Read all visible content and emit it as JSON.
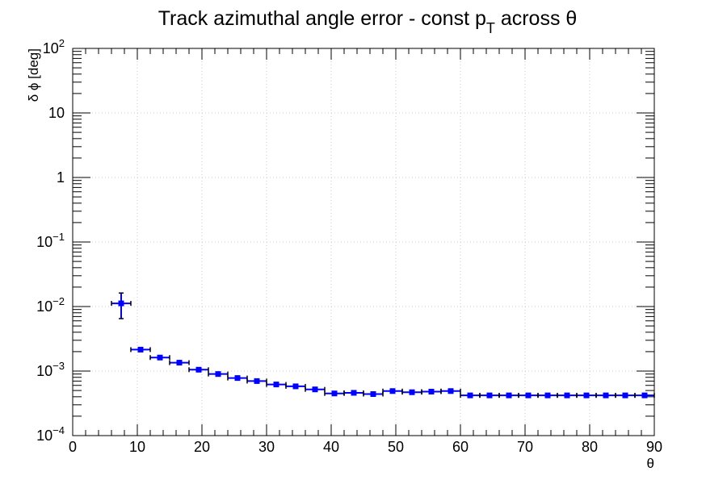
{
  "chart_data": {
    "type": "scatter",
    "title_main": "Track azimuthal angle error - const p",
    "title_sub": "T",
    "title_tail": " across θ",
    "xlabel": "θ",
    "ylabel": "δ ϕ [deg]",
    "xlim": [
      0,
      90
    ],
    "ylim": [
      0.0001,
      100
    ],
    "yscale": "log",
    "grid": true,
    "x_ticks": [
      "0",
      "10",
      "20",
      "30",
      "40",
      "50",
      "60",
      "70",
      "80",
      "90"
    ],
    "y_tick_labels": [
      {
        "base": "10",
        "exp": "−4"
      },
      {
        "base": "10",
        "exp": "−3"
      },
      {
        "base": "10",
        "exp": "−2"
      },
      {
        "base": "10",
        "exp": "−1"
      },
      {
        "base": "1",
        "exp": ""
      },
      {
        "base": "10",
        "exp": ""
      },
      {
        "base": "10",
        "exp": "2"
      }
    ],
    "marker_color": "#0000ff",
    "series": [
      {
        "x": [
          7.5,
          10.5,
          13.5,
          16.5,
          19.5,
          22.5,
          25.5,
          28.5,
          31.5,
          34.5,
          37.5,
          40.5,
          43.5,
          46.5,
          49.5,
          52.5,
          55.5,
          58.5,
          61.5,
          64.5,
          67.5,
          70.5,
          73.5,
          76.5,
          79.5,
          82.5,
          85.5,
          88.5
        ],
        "xerr": [
          1.5,
          1.5,
          1.5,
          1.5,
          1.5,
          1.5,
          1.5,
          1.5,
          1.5,
          1.5,
          1.5,
          1.5,
          1.5,
          1.5,
          1.5,
          1.5,
          1.5,
          1.5,
          1.5,
          1.5,
          1.5,
          1.5,
          1.5,
          1.5,
          1.5,
          1.5,
          1.5,
          1.5
        ],
        "y": [
          0.0112,
          0.00215,
          0.00162,
          0.00135,
          0.00105,
          0.0009,
          0.00078,
          0.0007,
          0.00062,
          0.00058,
          0.00052,
          0.00045,
          0.00046,
          0.00044,
          0.00049,
          0.00047,
          0.00048,
          0.00049,
          0.00042,
          0.00042,
          0.00042,
          0.00042,
          0.00042,
          0.00042,
          0.00042,
          0.00042,
          0.00042,
          0.00042
        ],
        "ylo": [
          0.0065,
          0.002,
          0.00153,
          0.00127,
          0.00099,
          0.00085,
          0.00074,
          0.00066,
          0.00059,
          0.00055,
          0.00049,
          0.00042,
          0.00043,
          0.00042,
          0.00046,
          0.00045,
          0.00045,
          0.00047,
          0.00041,
          0.00041,
          0.00041,
          0.00041,
          0.00041,
          0.00041,
          0.00041,
          0.00041,
          0.00041,
          0.00041
        ],
        "yhi": [
          0.0162,
          0.0023,
          0.00171,
          0.00143,
          0.00111,
          0.00095,
          0.00082,
          0.00074,
          0.00065,
          0.00061,
          0.00055,
          0.00048,
          0.00049,
          0.00046,
          0.00052,
          0.00049,
          0.00051,
          0.00051,
          0.00043,
          0.00043,
          0.00043,
          0.00043,
          0.00043,
          0.00043,
          0.00043,
          0.00043,
          0.00043,
          0.00043
        ]
      }
    ]
  }
}
